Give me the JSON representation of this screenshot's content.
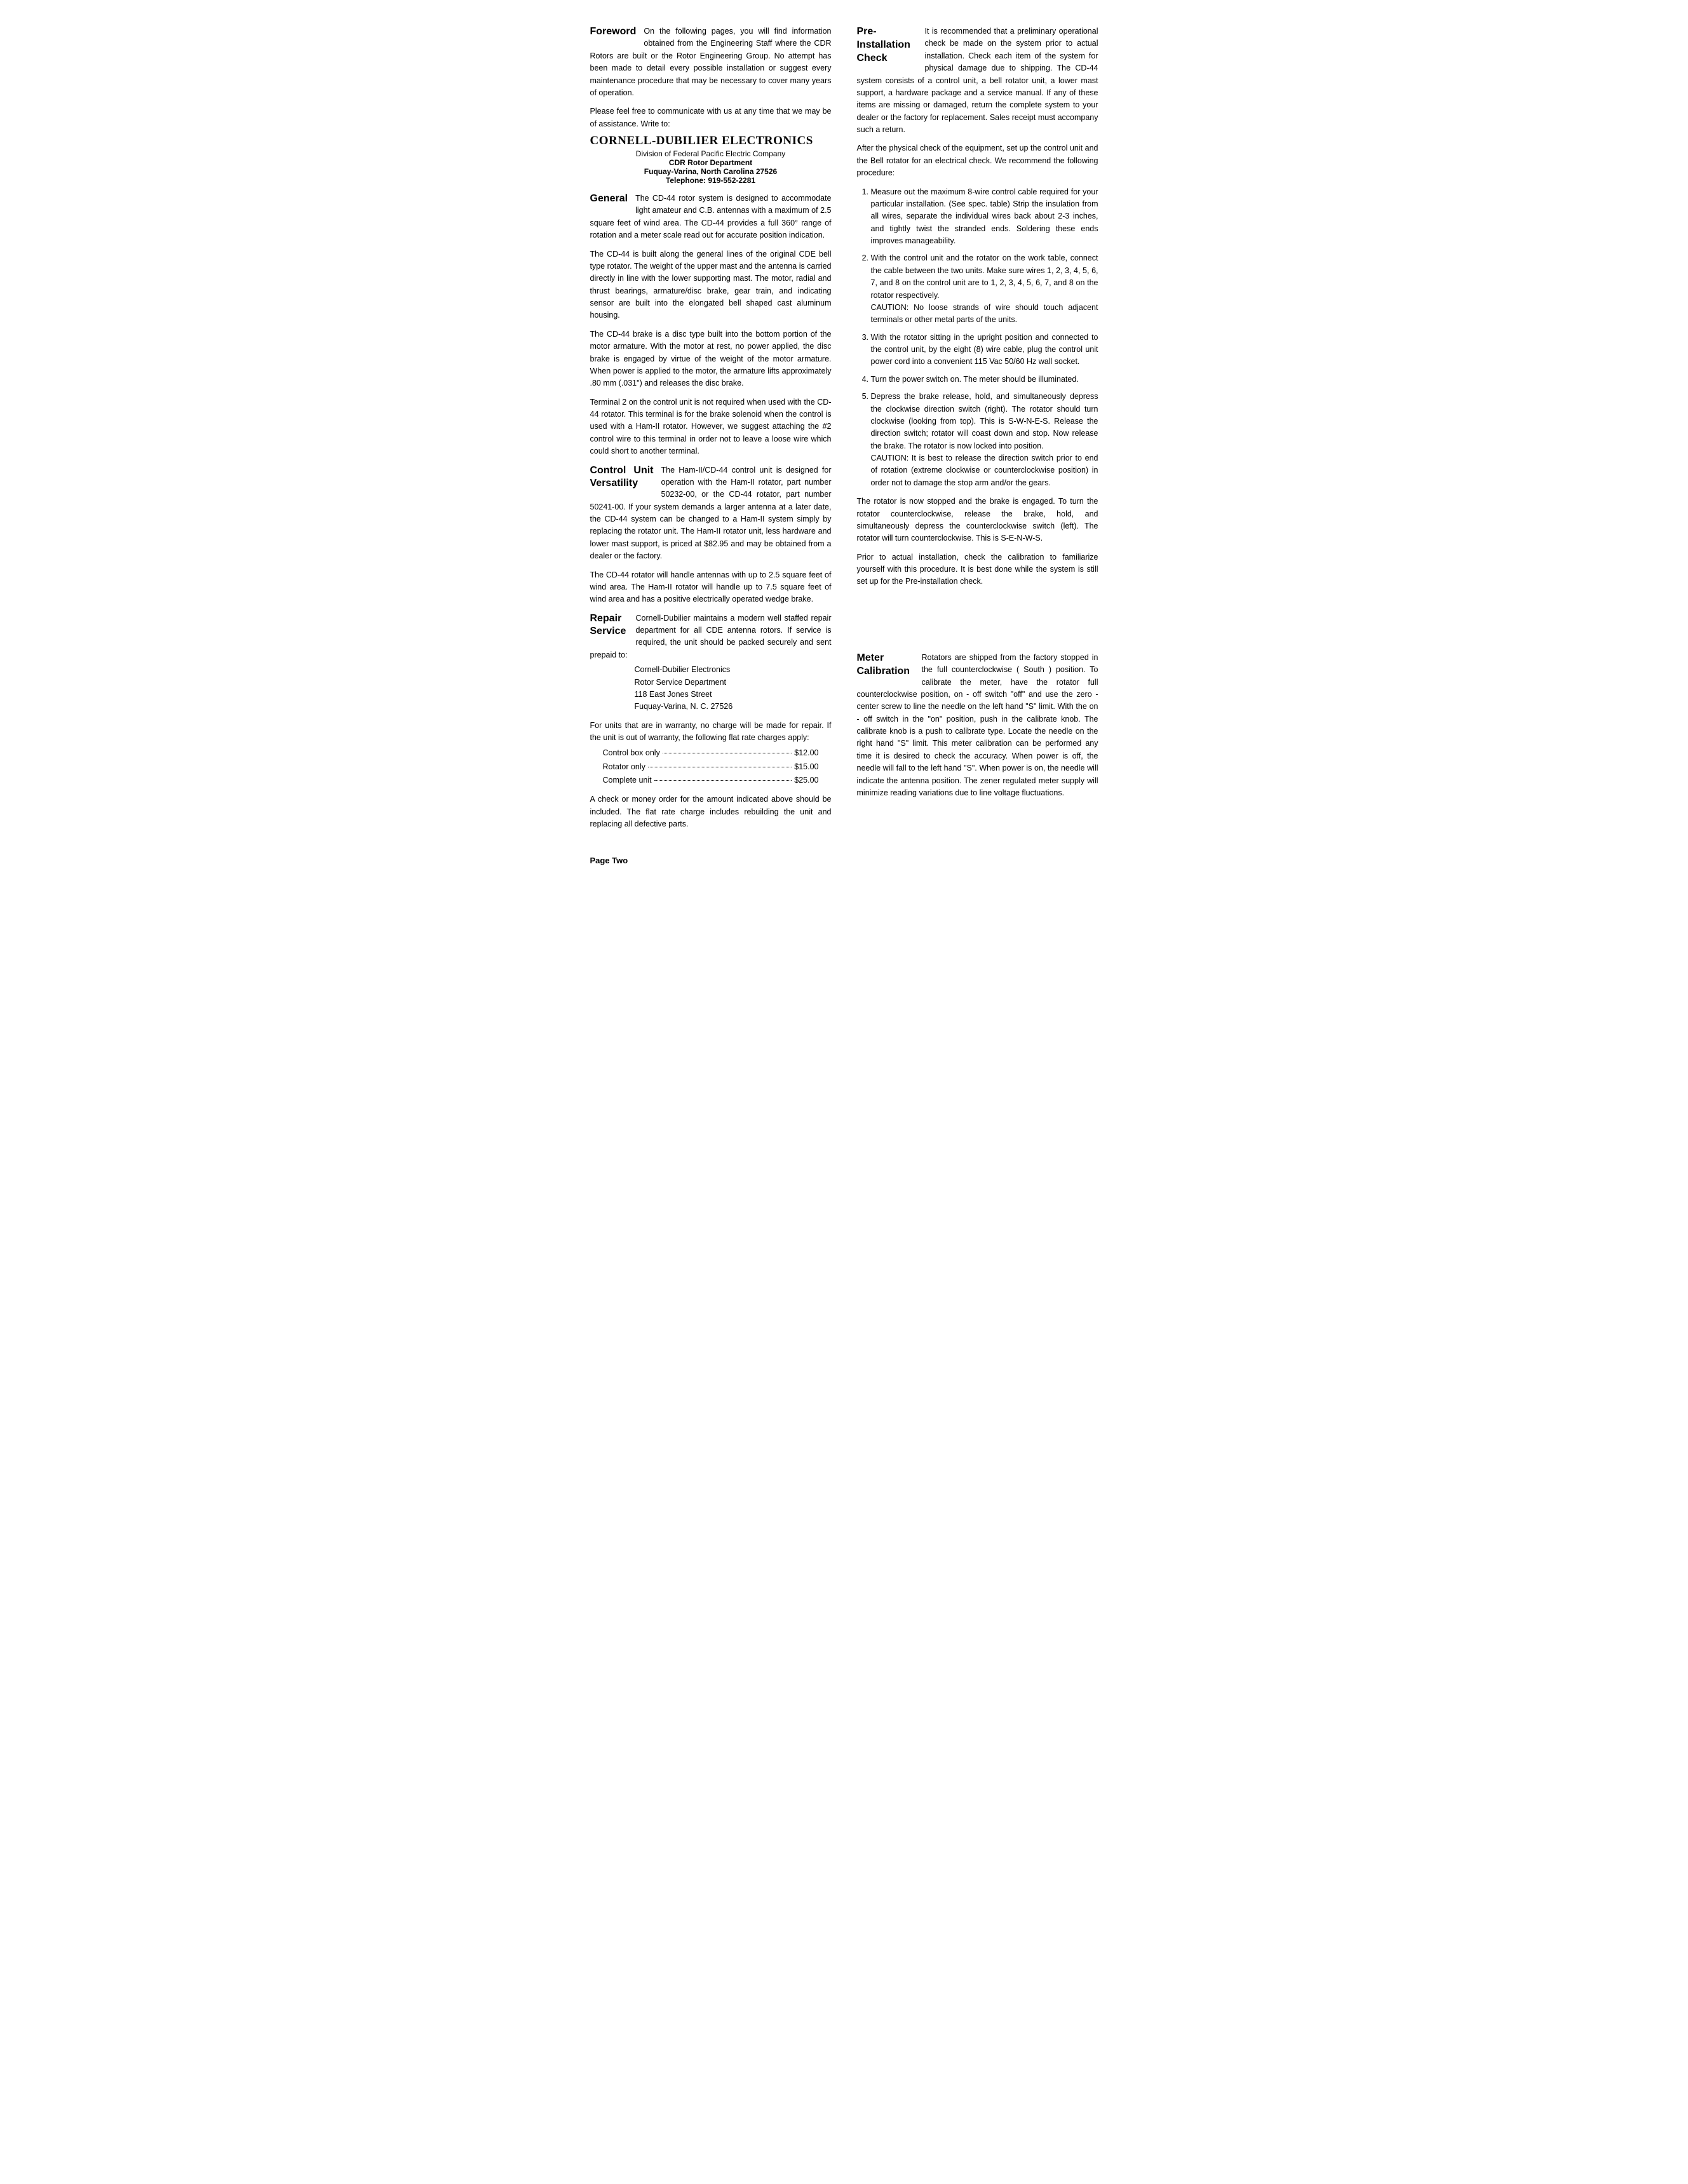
{
  "left": {
    "foreword": {
      "heading": "Foreword",
      "p1": "On the following pages, you will find information obtained from the Engineering Staff where the CDR Rotors are built or the Rotor Engineering Group. No attempt has been made to detail every possible installation or suggest every maintenance procedure that may be necessary to cover many years of operation.",
      "p2": "Please feel free to communicate with us at any time that we may be of assistance. Write to:"
    },
    "company": {
      "name": "CORNELL-DUBILIER  ELECTRONICS",
      "sub": "Division of Federal Pacific Electric Company",
      "dept": "CDR  Rotor  Department",
      "addr": "Fuquay-Varina,  North  Carolina  27526",
      "tel": "Telephone:  919-552-2281"
    },
    "general": {
      "heading": "General",
      "p1": "The CD-44 rotor system is designed to accommodate light amateur and C.B. antennas with a maximum of 2.5 square feet of wind area. The CD-44 provides a full 360° range of rotation and a meter scale read out for accurate position indication.",
      "p2": "The CD-44 is built along the general lines of the original CDE bell type rotator. The weight of the upper mast and the antenna is carried directly in line with the lower supporting mast. The motor, radial and thrust bearings, armature/disc brake, gear train, and indicating sensor are built into the elongated bell shaped cast aluminum housing.",
      "p3": "The CD-44 brake is a disc type built into the bottom portion of the motor armature. With the motor at rest, no power applied, the disc brake is engaged by virtue of the weight of the motor armature. When power is applied to the motor, the armature lifts approximately .80 mm (.031\") and releases the disc brake.",
      "p4": "Terminal 2 on the control unit is not required when used with the CD-44 rotator. This terminal is for the brake solenoid when the control is used with a Ham-II rotator. However, we suggest attaching the #2 control wire to this terminal in order not to leave a loose wire which could short to another terminal."
    },
    "versatility": {
      "heading": "Control Unit Versatility",
      "p1": "The Ham-II/CD-44 control unit is designed for operation with the Ham-II rotator, part number 50232-00, or the CD-44 rotator, part number 50241-00. If your system demands a larger antenna at a later date, the CD-44 system can be changed to a Ham-II system simply by replacing the rotator unit. The Ham-II rotator unit, less hardware and lower mast support, is priced at $82.95 and may be obtained from a dealer or the factory.",
      "p2": "The CD-44 rotator will handle antennas with up to 2.5 square feet of wind area. The Ham-II rotator will handle up to 7.5 square feet of wind area and has a positive electrically operated wedge brake."
    },
    "repair": {
      "heading": "Repair Service",
      "p1": "Cornell-Dubilier maintains a modern well staffed repair department for all CDE antenna rotors. If service is required, the unit should be packed securely and sent prepaid to:",
      "addr1": "Cornell-Dubilier Electronics",
      "addr2": "Rotor Service Department",
      "addr3": "118 East Jones Street",
      "addr4": "Fuquay-Varina, N. C. 27526",
      "p2": "For units that are in warranty, no charge will be made for repair. If the unit is out of warranty, the following flat rate charges apply:",
      "prices": [
        {
          "label": "Control box only",
          "value": "$12.00"
        },
        {
          "label": "Rotator only",
          "value": "$15.00"
        },
        {
          "label": "Complete unit",
          "value": "$25.00"
        }
      ],
      "p3": "A check or money order for the amount indicated above should be included. The flat rate charge includes rebuilding the unit and replacing all defective parts."
    }
  },
  "right": {
    "preinstall": {
      "heading": "Pre-\nInstallation\nCheck",
      "p1": "It is recommended that a preliminary operational check be made on the system prior to actual installation. Check each item of the system for physical damage due to shipping. The CD-44 system consists of a control unit, a bell rotator unit, a lower mast support, a hardware package and a service manual. If any of these items are missing or damaged, return the complete system to your dealer or the factory for replacement. Sales receipt must accompany such a return.",
      "p2": "After the physical check of the equipment, set up the control unit and the Bell rotator for an electrical check. We recommend the following procedure:",
      "steps": [
        "Measure out the maximum 8-wire control cable required for your particular installation. (See spec. table) Strip the insulation from all wires, separate the individual wires back about 2-3 inches, and tightly twist the stranded ends. Soldering these ends improves manageability.",
        "With the control unit and the rotator on the work table, connect the cable between the two units. Make sure wires 1, 2, 3, 4, 5, 6, 7, and 8 on the control unit are to 1, 2, 3, 4, 5, 6, 7, and 8 on the rotator respectively.\nCAUTION: No loose strands of wire should touch adjacent terminals or other metal parts of the units.",
        "With the rotator sitting in the upright position and connected to the control unit, by the eight (8) wire cable, plug the control unit power cord into a convenient 115 Vac 50/60 Hz wall socket.",
        "Turn the power switch on. The meter should be illuminated.",
        "Depress the brake release, hold, and simultaneously depress the clockwise direction switch (right). The rotator should turn clockwise (looking from top). This is S-W-N-E-S. Release the direction switch; rotator will coast down and stop. Now release the brake. The rotator is now locked into position.\nCAUTION: It is best to release the direction switch prior to end of rotation (extreme clockwise or counterclockwise position) in order not to damage the stop arm and/or the gears."
      ],
      "p3": "The rotator is now stopped and the brake is engaged. To turn the rotator counterclockwise, release the brake, hold, and simultaneously depress the counterclockwise switch (left). The rotator will turn counterclockwise. This is S-E-N-W-S.",
      "p4": "Prior to actual installation, check the calibration to familiarize yourself with this procedure. It is best done while the system is still set up for the Pre-installation check."
    },
    "meter": {
      "heading": "Meter\nCalibration",
      "p1": "Rotators are shipped from the factory stopped in the full counterclockwise ( South ) position. To calibrate the meter, have the rotator full counterclockwise position, on - off switch \"off\" and use the zero - center screw to line the needle on the left hand \"S\" limit. With the on - off switch in the \"on\" position, push in the calibrate knob. The calibrate knob is a push to calibrate type. Locate the needle on the right hand \"S\" limit. This meter calibration can be performed any time it is desired to check the accuracy. When power is off, the needle will fall to the left hand \"S\". When power is on, the needle will indicate the antenna position. The zener regulated meter supply will minimize reading variations due to line voltage fluctuations."
    }
  },
  "pageNum": "Page Two"
}
